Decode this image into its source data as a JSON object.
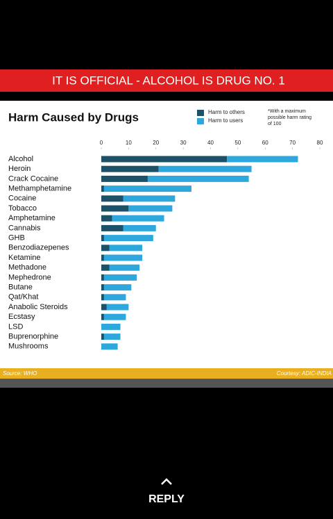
{
  "banner": "IT IS OFFICIAL - ALCOHOL IS DRUG NO. 1",
  "chart_data": {
    "type": "stacked-barh",
    "title": "Harm Caused by Drugs",
    "note": [
      "*With a maximum",
      "possible harm rating",
      "of 100"
    ],
    "categories": [
      "Alcohol",
      "Heroin",
      "Crack Cocaine",
      "Methamphetamine",
      "Cocaine",
      "Tobacco",
      "Amphetamine",
      "Cannabis",
      "GHB",
      "Benzodiazepenes",
      "Ketamine",
      "Methadone",
      "Mephedrone",
      "Butane",
      "Qat/Khat",
      "Anabolic Steroids",
      "Ecstasy",
      "LSD",
      "Buprenorphine",
      "Mushrooms"
    ],
    "series": [
      {
        "name": "Harm to others",
        "color": "#1d5168",
        "values": [
          46,
          21,
          17,
          1,
          8,
          10,
          4,
          8,
          1,
          3,
          1,
          3,
          1,
          1,
          1,
          2,
          1,
          0,
          1,
          0
        ]
      },
      {
        "name": "Harm to users",
        "color": "#2ea8dc",
        "values": [
          26,
          34,
          37,
          32,
          19,
          16,
          19,
          12,
          18,
          12,
          14,
          11,
          12,
          10,
          8,
          8,
          8,
          7,
          6,
          6
        ]
      }
    ],
    "xlim": [
      0,
      80
    ],
    "xticks": [
      0,
      10,
      20,
      30,
      40,
      50,
      60,
      70,
      80
    ]
  },
  "source": "Source: WHO",
  "courtesy": "Courtesy: ADIC-INDIA",
  "reply": "REPLY"
}
